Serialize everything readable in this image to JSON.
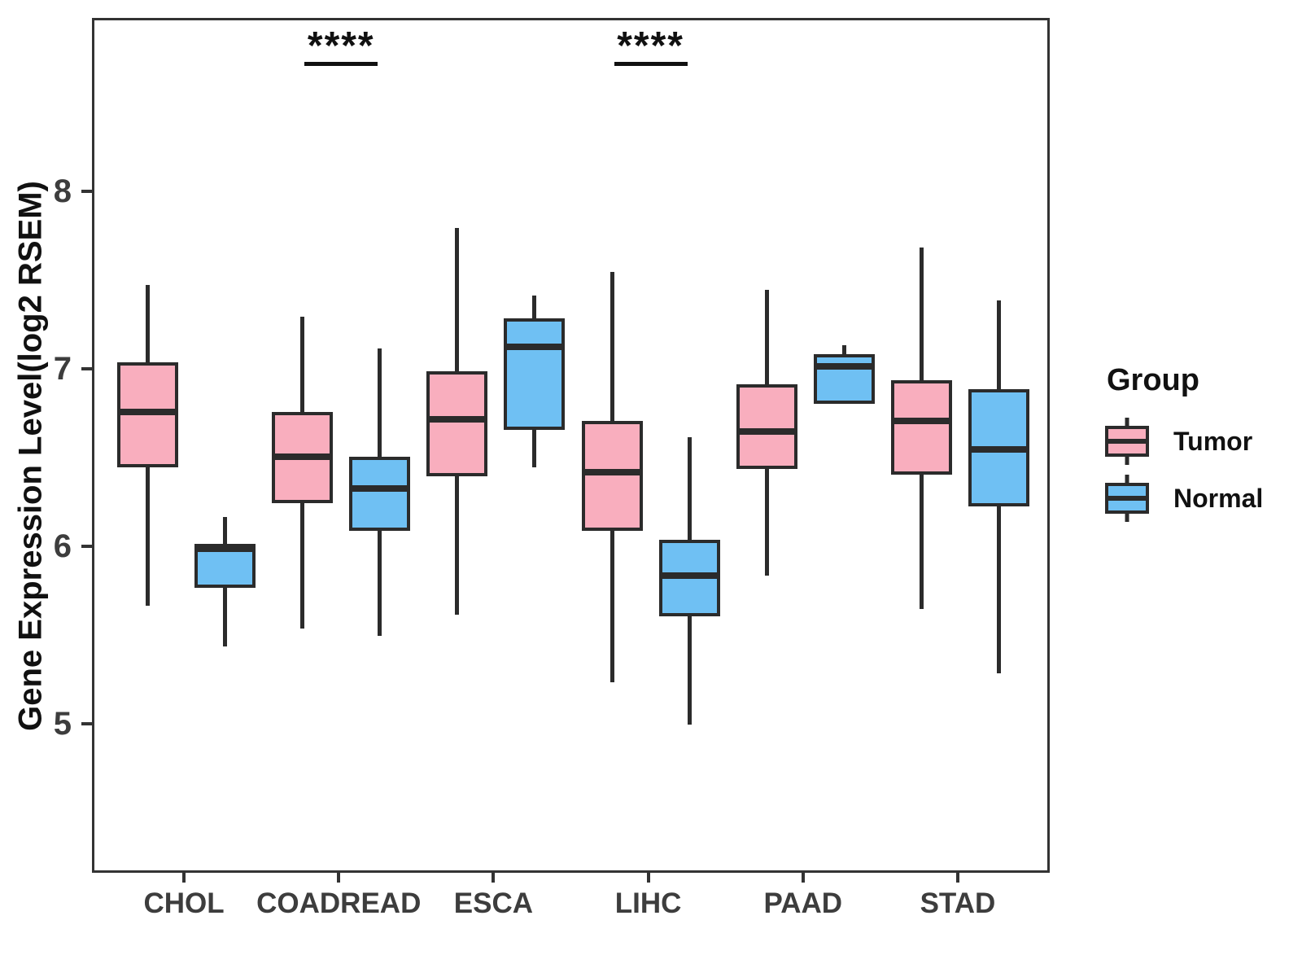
{
  "legend": {
    "title": "Group",
    "items": [
      {
        "label": "Tumor",
        "color": "#F9AEBE"
      },
      {
        "label": "Normal",
        "color": "#6FC0F3"
      }
    ]
  },
  "colors": {
    "tumor_fill": "#F9AEBE",
    "normal_fill": "#6FC0F3",
    "stroke": "#2B2B2B",
    "axis_line": "#333333",
    "axis_text": "#3D3D3D"
  },
  "chart_data": {
    "type": "boxplot",
    "title": "",
    "xlabel": "",
    "ylabel": "Gene Expression Level(log2 RSEM)",
    "categories": [
      "CHOL",
      "COADREAD",
      "ESCA",
      "LIHC",
      "PAAD",
      "STAD"
    ],
    "y_ticks": [
      5,
      6,
      7,
      8
    ],
    "ylim": [
      4.16,
      8.98
    ],
    "grid": false,
    "legend_position": "right",
    "series": [
      {
        "name": "Tumor",
        "fill": "#F9AEBE",
        "boxes": [
          {
            "category": "CHOL",
            "whisker_low": 5.68,
            "q1": 6.46,
            "median": 6.77,
            "q3": 7.05,
            "whisker_high": 7.49
          },
          {
            "category": "COADREAD",
            "whisker_low": 5.55,
            "q1": 6.26,
            "median": 6.52,
            "q3": 6.77,
            "whisker_high": 7.31
          },
          {
            "category": "ESCA",
            "whisker_low": 5.63,
            "q1": 6.41,
            "median": 6.73,
            "q3": 7.0,
            "whisker_high": 7.81
          },
          {
            "category": "LIHC",
            "whisker_low": 5.25,
            "q1": 6.1,
            "median": 6.43,
            "q3": 6.72,
            "whisker_high": 7.56
          },
          {
            "category": "PAAD",
            "whisker_low": 5.85,
            "q1": 6.45,
            "median": 6.66,
            "q3": 6.93,
            "whisker_high": 7.46
          },
          {
            "category": "STAD",
            "whisker_low": 5.66,
            "q1": 6.42,
            "median": 6.72,
            "q3": 6.95,
            "whisker_high": 7.7
          }
        ]
      },
      {
        "name": "Normal",
        "fill": "#6FC0F3",
        "boxes": [
          {
            "category": "CHOL",
            "whisker_low": 5.45,
            "q1": 5.78,
            "median": 6.0,
            "q3": 6.03,
            "whisker_high": 6.18
          },
          {
            "category": "COADREAD",
            "whisker_low": 5.51,
            "q1": 6.1,
            "median": 6.34,
            "q3": 6.52,
            "whisker_high": 7.13
          },
          {
            "category": "ESCA",
            "whisker_low": 6.46,
            "q1": 6.67,
            "median": 7.14,
            "q3": 7.3,
            "whisker_high": 7.43
          },
          {
            "category": "LIHC",
            "whisker_low": 5.01,
            "q1": 5.62,
            "median": 5.85,
            "q3": 6.05,
            "whisker_high": 6.63
          },
          {
            "category": "PAAD",
            "whisker_low": 6.82,
            "q1": 6.82,
            "median": 7.03,
            "q3": 7.1,
            "whisker_high": 7.15
          },
          {
            "category": "STAD",
            "whisker_low": 5.3,
            "q1": 6.24,
            "median": 6.56,
            "q3": 6.9,
            "whisker_high": 7.4
          }
        ]
      }
    ],
    "annotations": [
      {
        "category": "COADREAD",
        "label": "****"
      },
      {
        "category": "LIHC",
        "label": "****"
      }
    ]
  }
}
